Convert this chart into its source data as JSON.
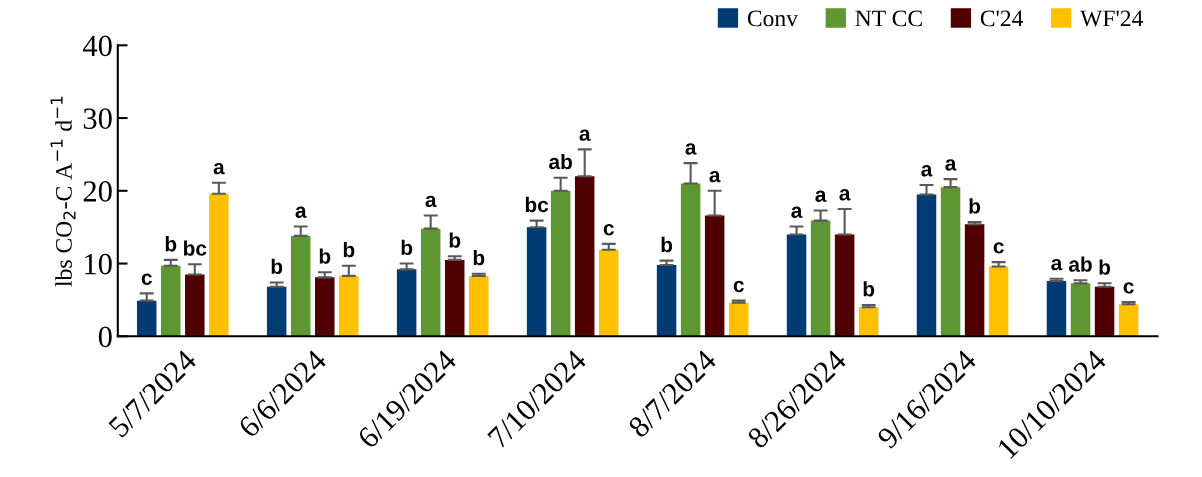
{
  "chart_data": {
    "type": "bar",
    "ylabel": "lbs CO$_{2}$-C A$^{−1}$ d$^{−1}$",
    "categories": [
      "5/7/2024",
      "6/6/2024",
      "6/19/2024",
      "7/10/2024",
      "8/7/2024",
      "8/26/2024",
      "9/16/2024",
      "10/10/2024"
    ],
    "series": [
      {
        "name": "Conv",
        "color": "#003b73",
        "values": [
          4.9,
          6.8,
          9.2,
          15.0,
          9.8,
          14.0,
          19.5,
          7.6
        ],
        "errors": [
          1.0,
          0.6,
          0.8,
          0.9,
          0.6,
          1.1,
          1.3,
          0.3
        ],
        "value_labels": [
          "c",
          "b",
          "b",
          "bc",
          "b",
          "a",
          "a",
          "a"
        ]
      },
      {
        "name": "NT CC",
        "color": "#5e9732",
        "values": [
          9.7,
          13.8,
          14.8,
          20.0,
          21.0,
          15.9,
          20.5,
          7.3
        ],
        "errors": [
          0.8,
          1.3,
          1.8,
          1.8,
          2.8,
          1.4,
          1.1,
          0.4
        ],
        "value_labels": [
          "b",
          "a",
          "a",
          "ab",
          "a",
          "a",
          "a",
          "ab"
        ]
      },
      {
        "name": "C'24",
        "color": "#500000",
        "values": [
          8.5,
          8.1,
          10.5,
          22.0,
          16.6,
          14.0,
          15.4,
          6.8
        ],
        "errors": [
          1.4,
          0.7,
          0.5,
          3.7,
          3.4,
          3.5,
          0.3,
          0.5
        ],
        "value_labels": [
          "bc",
          "b",
          "b",
          "a",
          "a",
          "a",
          "b",
          "b"
        ]
      },
      {
        "name": "WF'24",
        "color": "#ffc000",
        "values": [
          19.6,
          8.3,
          8.3,
          11.9,
          4.6,
          4.0,
          9.6,
          4.4
        ],
        "errors": [
          1.5,
          1.4,
          0.3,
          0.8,
          0.3,
          0.3,
          0.6,
          0.3
        ],
        "value_labels": [
          "a",
          "b",
          "b",
          "c",
          "c",
          "b",
          "c",
          "c"
        ]
      }
    ],
    "ylim": [
      0,
      40
    ],
    "yticks": [
      0,
      10,
      20,
      30,
      40
    ],
    "grid": false,
    "legend": "top right"
  }
}
